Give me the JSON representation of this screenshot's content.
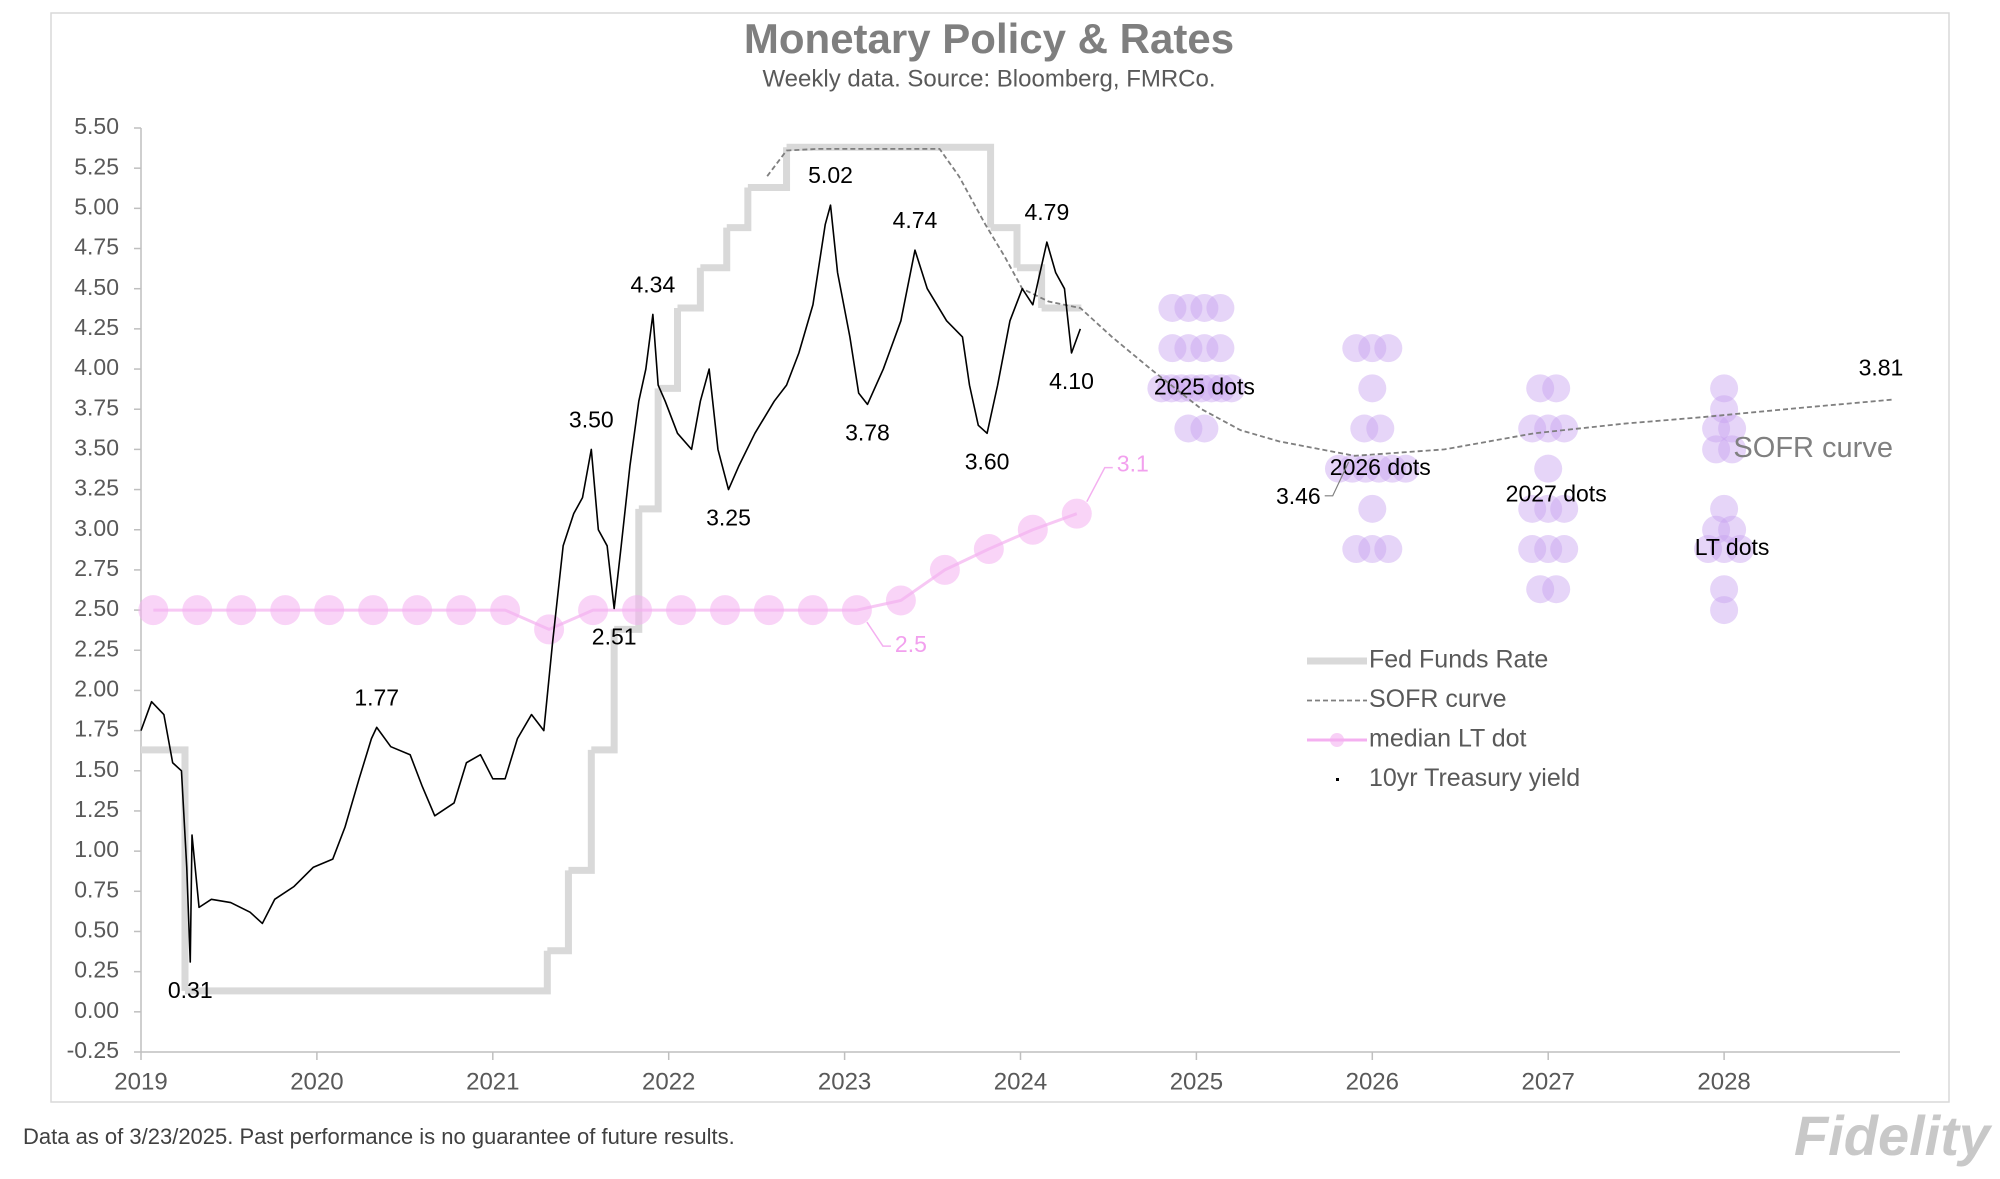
{
  "chart_data": {
    "type": "line",
    "title": "Monetary Policy & Rates",
    "subtitle": "Weekly data.  Source: Bloomberg, FMRCo.",
    "xlim": [
      2019,
      2029
    ],
    "xticks": [
      2019,
      2020,
      2021,
      2022,
      2023,
      2024,
      2025,
      2026,
      2027,
      2028
    ],
    "ylim": [
      -0.25,
      5.5
    ],
    "yticks": [
      -0.25,
      {
        "value": 0,
        "label": "0.00"
      },
      0.25,
      {
        "value": 0.5,
        "label": "0.50"
      },
      0.75,
      {
        "value": 1,
        "label": "1.00"
      },
      1.25,
      {
        "value": 1.5,
        "label": "1.50"
      },
      1.75,
      {
        "value": 2,
        "label": "2.00"
      },
      2.25,
      {
        "value": 2.5,
        "label": "2.50"
      },
      2.75,
      {
        "value": 3,
        "label": "3.00"
      },
      3.25,
      {
        "value": 3.5,
        "label": "3.50"
      },
      3.75,
      {
        "value": 4,
        "label": "4.00"
      },
      4.25,
      {
        "value": 4.5,
        "label": "4.50"
      },
      4.75,
      {
        "value": 5,
        "label": "5.00"
      },
      5.25,
      {
        "value": 5.5,
        "label": "5.50"
      }
    ],
    "grid": false,
    "legend": "lower right",
    "series": [
      {
        "name": "Fed Funds Rate",
        "color": "#d9d9d9",
        "style": "step",
        "x": [
          2019.0,
          2019.25,
          2021.31,
          2021.43,
          2021.56,
          2021.69,
          2021.83,
          2021.94,
          2022.05,
          2022.18,
          2022.33,
          2022.45,
          2022.67,
          2023.83,
          2023.98,
          2024.12,
          2024.34
        ],
        "values": [
          1.63,
          0.13,
          0.38,
          0.88,
          1.63,
          2.38,
          3.13,
          3.88,
          4.38,
          4.63,
          4.88,
          5.13,
          5.38,
          4.88,
          4.63,
          4.38,
          4.38
        ]
      },
      {
        "name": "SOFR curve",
        "color": "#7f7f7f",
        "style": "dashed",
        "x": [
          2022.56,
          2022.67,
          2022.85,
          2023.54,
          2023.65,
          2023.8,
          2023.91,
          2024.01,
          2024.16,
          2024.34,
          2024.52,
          2024.74,
          2025.03,
          2025.25,
          2025.47,
          2025.9,
          2026.41,
          2026.92,
          2027.43,
          2027.87,
          2028.45,
          2028.96
        ],
        "values": [
          5.2,
          5.36,
          5.37,
          5.37,
          5.2,
          4.9,
          4.7,
          4.5,
          4.42,
          4.38,
          4.2,
          4.0,
          3.75,
          3.62,
          3.55,
          3.46,
          3.5,
          3.6,
          3.66,
          3.7,
          3.76,
          3.81
        ],
        "value_labels": [
          null,
          null,
          null,
          null,
          null,
          null,
          null,
          null,
          null,
          null,
          null,
          null,
          null,
          null,
          null,
          "3.46",
          null,
          null,
          null,
          null,
          null,
          "3.81"
        ]
      },
      {
        "name": "median LT dot",
        "color": "#f4b0f0",
        "style": "markers",
        "x": [
          2019.07,
          2019.32,
          2019.57,
          2019.82,
          2020.07,
          2020.32,
          2020.57,
          2020.82,
          2021.07,
          2021.32,
          2021.57,
          2021.82,
          2022.07,
          2022.32,
          2022.57,
          2022.82,
          2023.07,
          2023.32,
          2023.57,
          2023.82,
          2024.07,
          2024.32
        ],
        "values": [
          2.5,
          2.5,
          2.5,
          2.5,
          2.5,
          2.5,
          2.5,
          2.5,
          2.5,
          2.38,
          2.5,
          2.5,
          2.5,
          2.5,
          2.5,
          2.5,
          2.5,
          2.56,
          2.75,
          2.88,
          3.0,
          3.1
        ],
        "value_labels": [
          null,
          null,
          null,
          null,
          null,
          null,
          null,
          null,
          null,
          null,
          null,
          null,
          null,
          null,
          null,
          null,
          "2.5",
          null,
          null,
          null,
          null,
          "3.1"
        ]
      },
      {
        "name": "10yr Treasury yield",
        "color": "#000000",
        "style": "line",
        "x": [
          2019.0,
          2019.06,
          2019.13,
          2019.18,
          2019.23,
          2019.26,
          2019.28,
          2019.29,
          2019.33,
          2019.4,
          2019.51,
          2019.62,
          2019.69,
          2019.76,
          2019.87,
          2019.98,
          2020.09,
          2020.16,
          2020.24,
          2020.31,
          2020.34,
          2020.42,
          2020.53,
          2020.6,
          2020.67,
          2020.78,
          2020.85,
          2020.93,
          2021.0,
          2021.07,
          2021.14,
          2021.22,
          2021.29,
          2021.34,
          2021.4,
          2021.46,
          2021.51,
          2021.56,
          2021.6,
          2021.65,
          2021.69,
          2021.73,
          2021.78,
          2021.83,
          2021.87,
          2021.91,
          2021.94,
          2021.98,
          2022.05,
          2022.13,
          2022.18,
          2022.23,
          2022.28,
          2022.34,
          2022.4,
          2022.49,
          2022.6,
          2022.67,
          2022.74,
          2022.82,
          2022.89,
          2022.92,
          2022.96,
          2023.03,
          2023.08,
          2023.13,
          2023.22,
          2023.32,
          2023.4,
          2023.47,
          2023.58,
          2023.67,
          2023.71,
          2023.76,
          2023.81,
          2023.87,
          2023.94,
          2024.01,
          2024.07,
          2024.15,
          2024.2,
          2024.25,
          2024.29,
          2024.34
        ],
        "values": [
          1.75,
          1.93,
          1.85,
          1.55,
          1.5,
          0.9,
          0.31,
          1.1,
          0.65,
          0.7,
          0.68,
          0.62,
          0.55,
          0.7,
          0.78,
          0.9,
          0.95,
          1.15,
          1.45,
          1.7,
          1.77,
          1.65,
          1.6,
          1.4,
          1.22,
          1.3,
          1.55,
          1.6,
          1.45,
          1.45,
          1.7,
          1.85,
          1.75,
          2.3,
          2.9,
          3.1,
          3.2,
          3.5,
          3.0,
          2.9,
          2.51,
          2.9,
          3.4,
          3.8,
          4.0,
          4.34,
          3.9,
          3.8,
          3.6,
          3.5,
          3.8,
          4.0,
          3.5,
          3.25,
          3.4,
          3.6,
          3.8,
          3.9,
          4.1,
          4.4,
          4.9,
          5.02,
          4.6,
          4.2,
          3.85,
          3.78,
          4.0,
          4.3,
          4.74,
          4.5,
          4.3,
          4.2,
          3.9,
          3.65,
          3.6,
          3.9,
          4.3,
          4.5,
          4.4,
          4.79,
          4.6,
          4.5,
          4.1,
          4.25
        ],
        "value_labels": [
          null,
          null,
          null,
          null,
          null,
          null,
          "0.31",
          null,
          null,
          null,
          null,
          null,
          null,
          null,
          null,
          null,
          null,
          null,
          null,
          null,
          "1.77",
          null,
          null,
          null,
          null,
          null,
          null,
          null,
          null,
          null,
          null,
          null,
          null,
          null,
          null,
          null,
          null,
          "3.50",
          null,
          null,
          "2.51",
          null,
          null,
          null,
          null,
          "4.34",
          null,
          null,
          null,
          null,
          null,
          null,
          null,
          "3.25",
          null,
          null,
          null,
          null,
          null,
          null,
          null,
          "5.02",
          null,
          null,
          null,
          "3.78",
          null,
          null,
          "4.74",
          null,
          null,
          null,
          null,
          null,
          "3.60",
          null,
          null,
          null,
          null,
          "4.79",
          null,
          null,
          "4.10",
          null
        ]
      }
    ],
    "dots": [
      {
        "label": "2025 dots",
        "x": 2025,
        "color": "#c8a2f0",
        "values": [
          4.38,
          4.38,
          4.38,
          4.38,
          4.13,
          4.13,
          4.13,
          4.13,
          3.88,
          3.88,
          3.88,
          3.88,
          3.88,
          3.88,
          3.88,
          3.88,
          3.63,
          3.63
        ]
      },
      {
        "label": "2026 dots",
        "x": 2026,
        "color": "#c8a2f0",
        "values": [
          4.13,
          4.13,
          4.13,
          3.88,
          3.63,
          3.63,
          3.38,
          3.38,
          3.38,
          3.38,
          3.38,
          3.38,
          3.13,
          2.88,
          2.88,
          2.88
        ]
      },
      {
        "label": "2027 dots",
        "x": 2027,
        "color": "#c8a2f0",
        "values": [
          3.88,
          3.88,
          3.63,
          3.63,
          3.63,
          3.38,
          3.13,
          3.13,
          3.13,
          2.88,
          2.88,
          2.88,
          2.63,
          2.63
        ]
      },
      {
        "label": "LT dots",
        "x": 2028,
        "color": "#c8a2f0",
        "values": [
          3.88,
          3.75,
          3.63,
          3.63,
          3.5,
          3.5,
          3.13,
          3.0,
          3.0,
          2.88,
          2.88,
          2.88,
          2.63,
          2.5
        ]
      }
    ]
  },
  "footer": {
    "note": "Data as of 3/23/2025. Past performance is no guarantee of future results.",
    "logo": "Fidelity"
  }
}
